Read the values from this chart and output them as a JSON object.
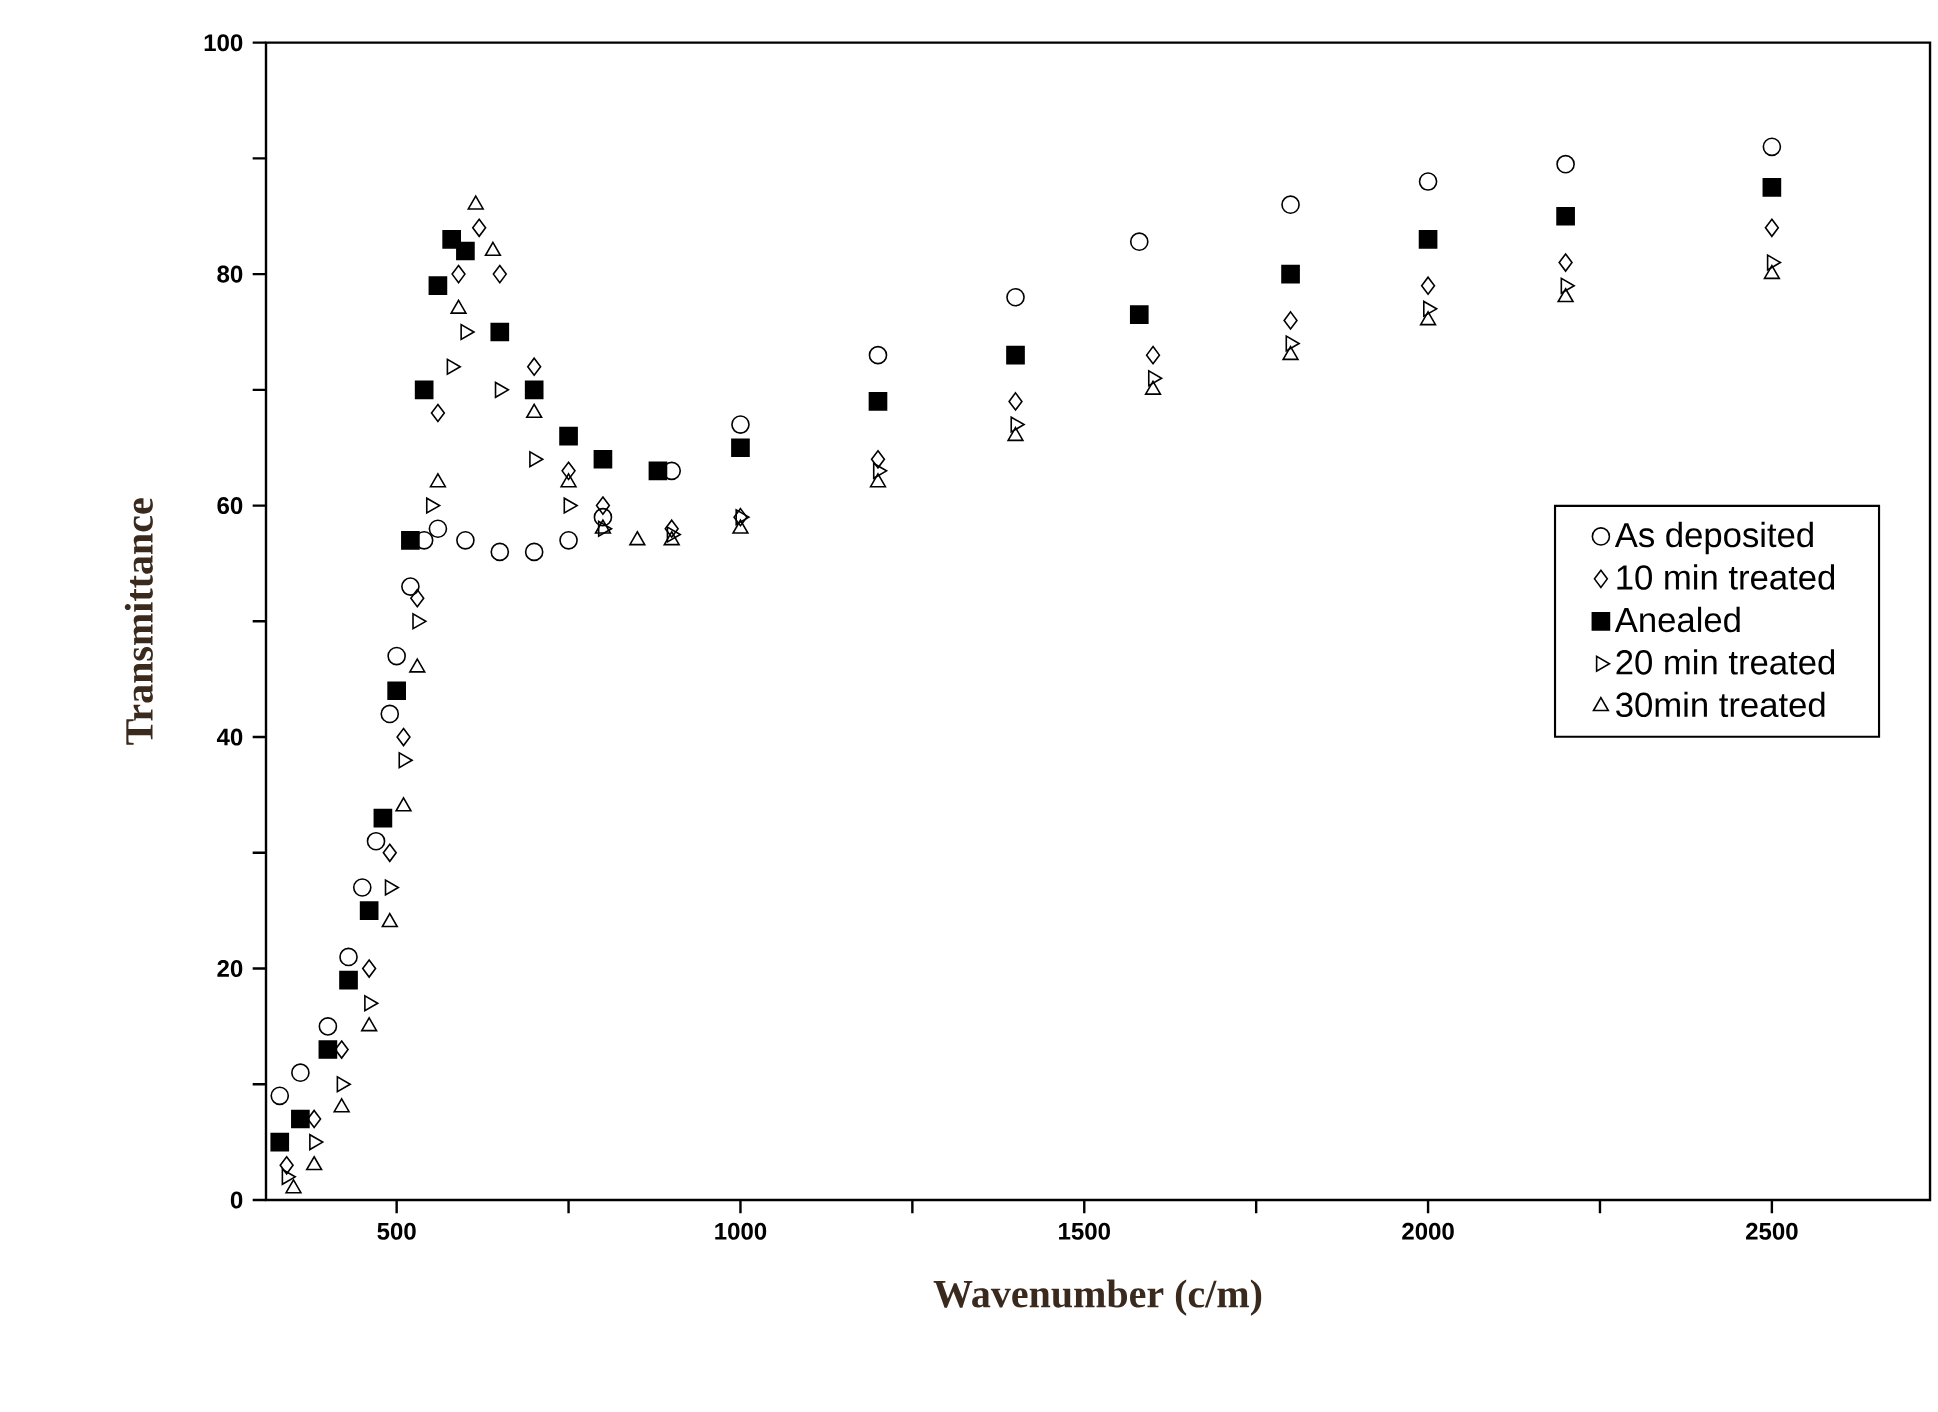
{
  "chart_data": {
    "type": "scatter",
    "xlabel": "Wavenumber (c/m)",
    "ylabel": "Transmittance",
    "xlim": [
      310,
      2730
    ],
    "ylim": [
      0,
      100
    ],
    "xticks": [
      500,
      {
        "value": 750,
        "label": null
      },
      1000,
      {
        "value": 1250,
        "label": null
      },
      1500,
      {
        "value": 1750,
        "label": null
      },
      2000,
      {
        "value": 2250,
        "label": null
      },
      2500
    ],
    "yticks": [
      0,
      {
        "value": 10,
        "label": null
      },
      20,
      {
        "value": 30,
        "label": null
      },
      40,
      {
        "value": 50,
        "label": null
      },
      60,
      {
        "value": 70,
        "label": null
      },
      80,
      {
        "value": 90,
        "label": null
      },
      100
    ],
    "legend": "right",
    "grid": false,
    "series": [
      {
        "name": "As deposited",
        "color": "#000000",
        "marker": "circle",
        "x": [
          330,
          360,
          400,
          430,
          450,
          470,
          490,
          500,
          520,
          540,
          560,
          600,
          650,
          700,
          750,
          800,
          900,
          1000,
          1200,
          1400,
          1580,
          1800,
          2000,
          2200,
          2500
        ],
        "values": [
          9,
          11,
          15,
          21,
          27,
          31,
          42,
          47,
          53,
          57,
          58,
          57,
          56,
          56,
          57,
          59,
          63,
          67,
          73,
          78,
          82.8,
          86,
          88,
          89.5,
          91
        ]
      },
      {
        "name": "10 min treated",
        "color": "#000000",
        "marker": "diamond",
        "x": [
          340,
          380,
          420,
          460,
          490,
          510,
          530,
          560,
          590,
          620,
          650,
          700,
          750,
          800,
          900,
          1000,
          1200,
          1400,
          1600,
          1800,
          2000,
          2200,
          2500
        ],
        "values": [
          3,
          7,
          13,
          20,
          30,
          40,
          52,
          68,
          80,
          84,
          80,
          72,
          63,
          60,
          58,
          59,
          64,
          69,
          73,
          76,
          79,
          81,
          84
        ]
      },
      {
        "name": "Anealed",
        "color": "#000000",
        "marker": "square",
        "x": [
          330,
          360,
          400,
          430,
          460,
          480,
          500,
          520,
          540,
          560,
          580,
          600,
          650,
          700,
          750,
          800,
          880,
          1000,
          1200,
          1400,
          1580,
          1800,
          2000,
          2200,
          2500
        ],
        "values": [
          5,
          7,
          13,
          19,
          25,
          33,
          44,
          57,
          70,
          79,
          83,
          82,
          75,
          70,
          66,
          64,
          63,
          65,
          69,
          73,
          76.5,
          80,
          83,
          85,
          87.5
        ]
      },
      {
        "name": "20 min treated",
        "color": "#000000",
        "marker": "triangle-right",
        "x": [
          340,
          380,
          420,
          460,
          490,
          510,
          530,
          550,
          580,
          600,
          650,
          700,
          750,
          800,
          900,
          1000,
          1200,
          1400,
          1600,
          1800,
          2000,
          2200,
          2500
        ],
        "values": [
          2,
          5,
          10,
          17,
          27,
          38,
          50,
          60,
          72,
          75,
          70,
          64,
          60,
          58,
          57.5,
          59,
          63,
          67,
          71,
          74,
          77,
          79,
          81
        ]
      },
      {
        "name": "30min treated",
        "color": "#000000",
        "marker": "triangle",
        "x": [
          350,
          380,
          420,
          460,
          490,
          510,
          530,
          560,
          590,
          615,
          640,
          700,
          750,
          800,
          850,
          900,
          1000,
          1200,
          1400,
          1600,
          1800,
          2000,
          2200,
          2500
        ],
        "values": [
          1,
          3,
          8,
          15,
          24,
          34,
          46,
          62,
          77,
          86,
          82,
          68,
          62,
          58,
          57,
          57,
          58,
          62,
          66,
          70,
          73,
          76,
          78,
          80
        ]
      }
    ]
  }
}
